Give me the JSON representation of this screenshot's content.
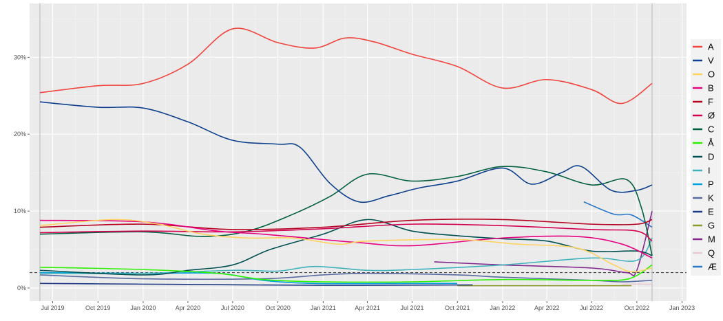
{
  "chart_data": {
    "type": "line",
    "title": "",
    "xlabel": "",
    "ylabel": "",
    "xlim": [
      "2019-05-15",
      "2023-01-10"
    ],
    "ylim": [
      -1.7,
      37
    ],
    "grid": true,
    "legend_position": "right",
    "x_ticks": [
      "Jul 2019",
      "Oct 2019",
      "Jan 2020",
      "Apr 2020",
      "Jul 2020",
      "Oct 2020",
      "Jan 2021",
      "Apr 2021",
      "Jul 2021",
      "Oct 2021",
      "Jan 2022",
      "Apr 2022",
      "Jul 2022",
      "Oct 2022",
      "Jan 2023"
    ],
    "x_tick_dates": [
      "2019-07-01",
      "2019-10-01",
      "2020-01-01",
      "2020-04-01",
      "2020-07-01",
      "2020-10-01",
      "2021-01-01",
      "2021-04-01",
      "2021-07-01",
      "2021-10-01",
      "2022-01-01",
      "2022-04-01",
      "2022-07-01",
      "2022-10-01",
      "2023-01-01"
    ],
    "y_ticks": [
      0,
      10,
      20,
      30
    ],
    "y_tick_labels": [
      "0%",
      "10%",
      "20%",
      "30%"
    ],
    "threshold_line": 2,
    "vertical_lines": [
      "2019-06-05",
      "2022-11-01"
    ],
    "series": [
      {
        "name": "A",
        "color": "#f0443e",
        "points": [
          [
            "2019-06-05",
            25.4
          ],
          [
            "2019-10-01",
            26.3
          ],
          [
            "2020-01-01",
            26.6
          ],
          [
            "2020-04-01",
            29.1
          ],
          [
            "2020-07-01",
            33.7
          ],
          [
            "2020-10-01",
            31.9
          ],
          [
            "2020-12-15",
            31.2
          ],
          [
            "2021-02-15",
            32.5
          ],
          [
            "2021-04-15",
            32.0
          ],
          [
            "2021-07-01",
            30.4
          ],
          [
            "2021-10-01",
            28.8
          ],
          [
            "2022-01-01",
            26.0
          ],
          [
            "2022-04-01",
            27.1
          ],
          [
            "2022-07-01",
            25.8
          ],
          [
            "2022-09-01",
            24.0
          ],
          [
            "2022-11-01",
            26.6
          ]
        ]
      },
      {
        "name": "V",
        "color": "#0d3f8c",
        "points": [
          [
            "2019-06-05",
            24.2
          ],
          [
            "2019-10-01",
            23.5
          ],
          [
            "2020-01-01",
            23.4
          ],
          [
            "2020-04-01",
            21.6
          ],
          [
            "2020-07-01",
            19.2
          ],
          [
            "2020-10-01",
            18.7
          ],
          [
            "2020-11-15",
            18.3
          ],
          [
            "2021-01-15",
            13.6
          ],
          [
            "2021-03-15",
            11.2
          ],
          [
            "2021-05-15",
            12.0
          ],
          [
            "2021-07-15",
            13.0
          ],
          [
            "2021-10-01",
            13.9
          ],
          [
            "2022-01-01",
            15.6
          ],
          [
            "2022-03-01",
            13.5
          ],
          [
            "2022-05-01",
            15.0
          ],
          [
            "2022-06-10",
            15.8
          ],
          [
            "2022-08-10",
            12.7
          ],
          [
            "2022-10-01",
            12.7
          ],
          [
            "2022-11-01",
            13.4
          ]
        ]
      },
      {
        "name": "O",
        "color": "#fdd25e",
        "points": [
          [
            "2019-06-05",
            8.1
          ],
          [
            "2019-11-01",
            8.9
          ],
          [
            "2020-02-01",
            8.3
          ],
          [
            "2020-05-01",
            7.0
          ],
          [
            "2020-08-01",
            6.5
          ],
          [
            "2020-11-01",
            6.5
          ],
          [
            "2021-02-01",
            5.7
          ],
          [
            "2021-04-01",
            6.1
          ],
          [
            "2021-10-01",
            6.3
          ],
          [
            "2022-02-01",
            5.7
          ],
          [
            "2022-06-01",
            5.2
          ],
          [
            "2022-08-15",
            3.0
          ],
          [
            "2022-09-20",
            2.1
          ],
          [
            "2022-11-01",
            2.6
          ]
        ]
      },
      {
        "name": "B",
        "color": "#e6007e",
        "points": [
          [
            "2019-06-05",
            8.8
          ],
          [
            "2020-01-01",
            8.6
          ],
          [
            "2020-06-01",
            7.4
          ],
          [
            "2020-09-01",
            7.0
          ],
          [
            "2021-01-01",
            6.3
          ],
          [
            "2021-03-15",
            5.9
          ],
          [
            "2021-07-01",
            5.5
          ],
          [
            "2022-01-01",
            6.5
          ],
          [
            "2022-06-01",
            6.7
          ],
          [
            "2022-09-01",
            5.7
          ],
          [
            "2022-11-01",
            3.9
          ]
        ]
      },
      {
        "name": "F",
        "color": "#b5001f",
        "points": [
          [
            "2019-06-05",
            7.9
          ],
          [
            "2020-01-01",
            8.3
          ],
          [
            "2020-07-01",
            7.6
          ],
          [
            "2021-01-01",
            7.9
          ],
          [
            "2021-07-01",
            8.8
          ],
          [
            "2022-01-01",
            8.9
          ],
          [
            "2022-07-01",
            8.3
          ],
          [
            "2022-10-01",
            8.3
          ],
          [
            "2022-11-01",
            8.9
          ]
        ]
      },
      {
        "name": "Ø",
        "color": "#d4004f",
        "points": [
          [
            "2019-06-05",
            7.2
          ],
          [
            "2020-01-01",
            7.4
          ],
          [
            "2020-07-01",
            7.3
          ],
          [
            "2021-01-01",
            7.7
          ],
          [
            "2021-07-01",
            8.3
          ],
          [
            "2022-01-01",
            8.1
          ],
          [
            "2022-07-01",
            7.6
          ],
          [
            "2022-10-01",
            7.4
          ],
          [
            "2022-11-01",
            6.1
          ]
        ]
      },
      {
        "name": "C",
        "color": "#005f3f",
        "points": [
          [
            "2019-06-05",
            7.0
          ],
          [
            "2020-01-01",
            7.3
          ],
          [
            "2020-05-01",
            6.7
          ],
          [
            "2020-08-01",
            7.4
          ],
          [
            "2020-11-01",
            9.6
          ],
          [
            "2021-01-15",
            11.9
          ],
          [
            "2021-04-01",
            14.8
          ],
          [
            "2021-07-01",
            13.9
          ],
          [
            "2021-10-01",
            14.5
          ],
          [
            "2022-01-01",
            15.8
          ],
          [
            "2022-04-01",
            15.1
          ],
          [
            "2022-07-01",
            13.4
          ],
          [
            "2022-09-10",
            14.1
          ],
          [
            "2022-10-10",
            10.5
          ],
          [
            "2022-11-01",
            4.2
          ]
        ]
      },
      {
        "name": "Å",
        "color": "#2bf000",
        "points": [
          [
            "2019-06-05",
            2.7
          ],
          [
            "2020-01-01",
            2.4
          ],
          [
            "2020-06-01",
            1.9
          ],
          [
            "2020-09-01",
            1.1
          ],
          [
            "2021-01-01",
            0.8
          ],
          [
            "2021-07-01",
            0.8
          ],
          [
            "2022-01-01",
            1.1
          ],
          [
            "2022-07-01",
            1.0
          ],
          [
            "2022-09-15",
            1.2
          ],
          [
            "2022-11-01",
            3.0
          ]
        ]
      },
      {
        "name": "D",
        "color": "#004f50",
        "points": [
          [
            "2019-06-05",
            2.3
          ],
          [
            "2020-01-01",
            1.7
          ],
          [
            "2020-04-01",
            2.3
          ],
          [
            "2020-07-01",
            3.0
          ],
          [
            "2020-09-15",
            5.0
          ],
          [
            "2021-01-01",
            7.0
          ],
          [
            "2021-04-01",
            8.9
          ],
          [
            "2021-07-01",
            7.4
          ],
          [
            "2021-10-01",
            6.8
          ],
          [
            "2022-01-01",
            6.4
          ],
          [
            "2022-04-01",
            6.1
          ],
          [
            "2022-07-01",
            4.8
          ],
          [
            "2022-10-01",
            4.8
          ],
          [
            "2022-11-01",
            4.2
          ]
        ]
      },
      {
        "name": "I",
        "color": "#3eb2bb",
        "points": [
          [
            "2019-06-05",
            1.9
          ],
          [
            "2020-01-01",
            1.9
          ],
          [
            "2020-07-01",
            2.3
          ],
          [
            "2020-10-01",
            2.2
          ],
          [
            "2020-12-15",
            2.8
          ],
          [
            "2021-04-01",
            2.3
          ],
          [
            "2021-07-01",
            2.4
          ],
          [
            "2022-01-01",
            3.0
          ],
          [
            "2022-07-01",
            3.9
          ],
          [
            "2022-10-01",
            3.6
          ],
          [
            "2022-11-01",
            6.5
          ]
        ]
      },
      {
        "name": "P",
        "color": "#009fe0",
        "points": [
          [
            "2019-06-05",
            2.0
          ],
          [
            "2020-01-01",
            1.9
          ],
          [
            "2020-06-01",
            1.9
          ],
          [
            "2020-09-01",
            1.0
          ],
          [
            "2020-12-15",
            0.6
          ],
          [
            "2021-07-01",
            0.6
          ],
          [
            "2021-10-01",
            0.6
          ]
        ]
      },
      {
        "name": "K",
        "color": "#586a9f",
        "points": [
          [
            "2019-06-05",
            1.7
          ],
          [
            "2020-01-01",
            1.2
          ],
          [
            "2020-09-01",
            1.2
          ],
          [
            "2021-01-01",
            1.7
          ],
          [
            "2021-04-01",
            1.9
          ],
          [
            "2021-10-01",
            1.7
          ],
          [
            "2022-01-01",
            1.4
          ],
          [
            "2022-07-01",
            1.0
          ],
          [
            "2022-09-01",
            0.8
          ],
          [
            "2022-11-01",
            1.0
          ]
        ]
      },
      {
        "name": "E",
        "color": "#1f3a85",
        "points": [
          [
            "2019-06-05",
            0.6
          ],
          [
            "2020-01-01",
            0.5
          ],
          [
            "2021-01-01",
            0.35
          ],
          [
            "2021-11-01",
            0.4
          ]
        ]
      },
      {
        "name": "G",
        "color": "#8c9a2c",
        "points": [
          [
            "2021-10-01",
            0.3
          ],
          [
            "2022-04-01",
            0.3
          ],
          [
            "2022-09-20",
            0.3
          ]
        ]
      },
      {
        "name": "M",
        "color": "#82288f",
        "points": [
          [
            "2021-08-15",
            3.4
          ],
          [
            "2022-01-01",
            3.0
          ],
          [
            "2022-07-01",
            2.6
          ],
          [
            "2022-09-10",
            2.0
          ],
          [
            "2022-10-01",
            2.3
          ],
          [
            "2022-11-01",
            10.0
          ]
        ]
      },
      {
        "name": "Q",
        "color": "#e9c8d2",
        "points": [
          [
            "2022-09-01",
            0.5
          ],
          [
            "2022-11-01",
            0.5
          ]
        ]
      },
      {
        "name": "Æ",
        "color": "#2a78c8",
        "points": [
          [
            "2022-06-15",
            11.2
          ],
          [
            "2022-08-15",
            9.6
          ],
          [
            "2022-09-20",
            9.5
          ],
          [
            "2022-11-01",
            7.9
          ]
        ]
      }
    ]
  }
}
